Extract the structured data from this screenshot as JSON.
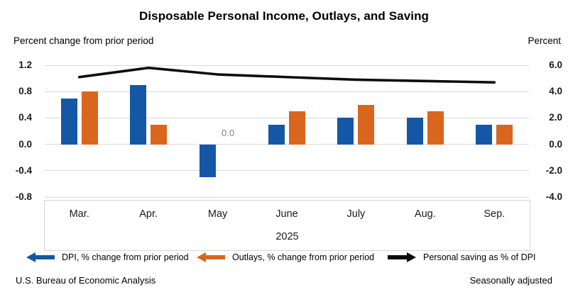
{
  "title": "Disposable Personal Income, Outlays, and Saving",
  "left_axis_title": "Percent change from prior period",
  "right_axis_title": "Percent",
  "year_label": "2025",
  "footer": {
    "source": "U.S. Bureau of Economic Analysis",
    "note": "Seasonally adjusted"
  },
  "colors": {
    "dpi_blue": "#1458A5",
    "outlays_orange": "#D9661E",
    "saving_black": "#0d0d0d",
    "gridline": "#d9d9d9",
    "annotation_gray": "#7f7f7f"
  },
  "legend": [
    {
      "label": "DPI, % change from prior period",
      "icon": "left-arrow",
      "color": "#1458A5"
    },
    {
      "label": "Outlays, % change from prior period",
      "icon": "left-arrow",
      "color": "#D9661E"
    },
    {
      "label": "Personal saving as % of DPI",
      "icon": "right-arrow",
      "color": "#0d0d0d"
    }
  ],
  "chart_data": {
    "type": "bar",
    "subtype": "grouped bars with overlaid line",
    "categories": [
      "Mar.",
      "Apr.",
      "May",
      "June",
      "July",
      "Aug.",
      "Sep."
    ],
    "year": "2025",
    "series": [
      {
        "name": "DPI, % change from prior period",
        "type": "bar",
        "axis": "left",
        "color": "#1458A5",
        "values": [
          0.7,
          0.9,
          -0.5,
          0.3,
          0.4,
          0.4,
          0.3
        ]
      },
      {
        "name": "Outlays, % change from prior period",
        "type": "bar",
        "axis": "left",
        "color": "#D9661E",
        "values": [
          0.8,
          0.3,
          0.0,
          0.5,
          0.6,
          0.5,
          0.3
        ]
      },
      {
        "name": "Personal saving as % of DPI",
        "type": "line",
        "axis": "right",
        "color": "#0d0d0d",
        "values": [
          5.1,
          5.8,
          5.3,
          5.1,
          4.9,
          4.8,
          4.7
        ]
      }
    ],
    "left_axis": {
      "title": "Percent change from prior period",
      "min": -0.8,
      "max": 1.2,
      "tick_labels": [
        "1.2",
        "0.8",
        "0.4",
        "0.0",
        "-0.4",
        "-0.8"
      ]
    },
    "right_axis": {
      "title": "Percent",
      "min": -4.0,
      "max": 6.0,
      "tick_labels": [
        "6.0",
        "4.0",
        "2.0",
        "0.0",
        "-2.0",
        "-4.0"
      ]
    },
    "annotations": [
      {
        "text": "0.0",
        "category_index": 2,
        "series_index": 1,
        "note": "zero-height Outlays bar in May"
      }
    ],
    "grid": "horizontal",
    "legend_position": "bottom"
  }
}
